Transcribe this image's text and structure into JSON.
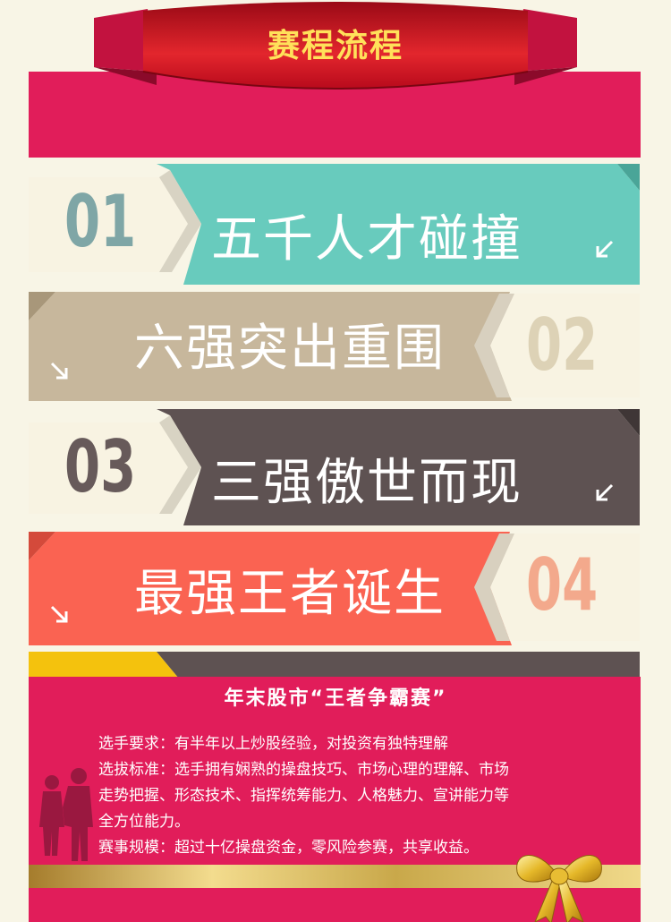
{
  "header": {
    "title": "赛程流程"
  },
  "steps": [
    {
      "number": "01",
      "title": "五千人才碰撞",
      "color": "#68cbbd",
      "number_color": "#7fa6a6"
    },
    {
      "number": "02",
      "title": "六强突出重围",
      "color": "#c7b79c",
      "number_color": "#ddd2b6"
    },
    {
      "number": "03",
      "title": "三强傲世而现",
      "color": "#5e5252",
      "number_color": "#675a5a"
    },
    {
      "number": "04",
      "title": "最强王者诞生",
      "color": "#fa6352",
      "number_color": "#f3a98c"
    }
  ],
  "info": {
    "title": "年末股市“王者争霸赛”",
    "lines": [
      "选手要求：有半年以上炒股经验，对投资有独特理解",
      "选拔标准：选手拥有娴熟的操盘技巧、市场心理的理解、市场",
      "走势把握、形态技术、指挥统筹能力、人格魅力、宣讲能力等",
      "全方位能力。",
      "赛事规模：超过十亿操盘资金，零风险参赛，共享收益。"
    ]
  },
  "colors": {
    "magenta": "#e11d5a",
    "header_red": "#c80d27",
    "gold": "#c9a84a",
    "yellow": "#f4c20d"
  },
  "icons": [
    "diagonal-arrow-icon",
    "business-people-silhouette",
    "gold-bow-icon"
  ]
}
